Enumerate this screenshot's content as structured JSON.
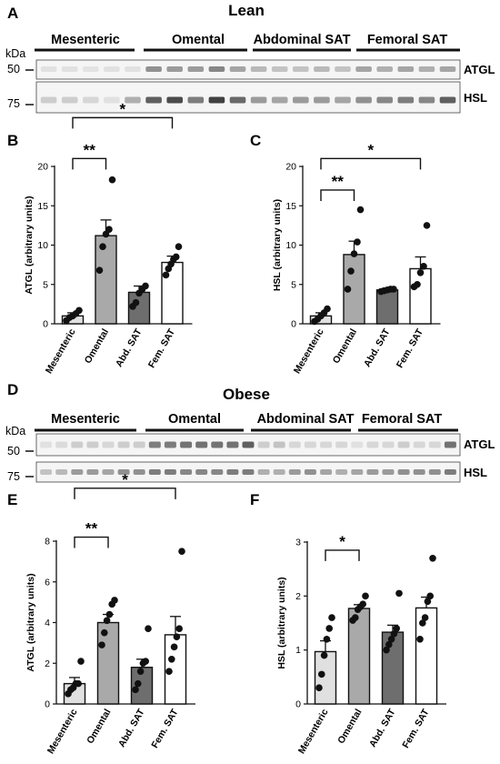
{
  "panel_letters": {
    "A": "A",
    "B": "B",
    "C": "C",
    "D": "D",
    "E": "E",
    "F": "F"
  },
  "sections": {
    "lean_title": "Lean",
    "obese_title": "Obese"
  },
  "blots": {
    "kda_label": "kDa",
    "marker_50": "50",
    "marker_75": "75",
    "atgl_label": "ATGL",
    "hsl_label": "HSL",
    "group_mesenteric": "Mesenteric",
    "group_omental": "Omental",
    "group_abdominal": "Abdominal SAT",
    "group_femoral": "Femoral SAT",
    "lean_atgl_intensity": [
      0.05,
      0.05,
      0.04,
      0.05,
      0.05,
      0.45,
      0.4,
      0.4,
      0.5,
      0.35,
      0.25,
      0.2,
      0.2,
      0.25,
      0.2,
      0.35,
      0.3,
      0.35,
      0.3,
      0.35
    ],
    "lean_hsl_intensity": [
      0.15,
      0.15,
      0.1,
      0.05,
      0.3,
      0.7,
      0.8,
      0.55,
      0.85,
      0.65,
      0.4,
      0.35,
      0.4,
      0.4,
      0.35,
      0.45,
      0.5,
      0.55,
      0.5,
      0.7
    ],
    "obese_atgl_intensity": [
      0.05,
      0.08,
      0.15,
      0.15,
      0.1,
      0.15,
      0.15,
      0.55,
      0.55,
      0.6,
      0.6,
      0.6,
      0.6,
      0.7,
      0.15,
      0.2,
      0.1,
      0.1,
      0.1,
      0.1,
      0.05,
      0.1,
      0.1,
      0.15,
      0.1,
      0.1,
      0.6
    ],
    "obese_hsl_intensity": [
      0.2,
      0.25,
      0.4,
      0.4,
      0.35,
      0.45,
      0.45,
      0.55,
      0.55,
      0.5,
      0.5,
      0.5,
      0.55,
      0.55,
      0.3,
      0.3,
      0.4,
      0.45,
      0.35,
      0.3,
      0.35,
      0.4,
      0.4,
      0.45,
      0.45,
      0.45,
      0.55
    ]
  },
  "chart_data": [
    {
      "panel": "B",
      "type": "bar",
      "ylabel": "ATGL (arbitrary units)",
      "ylim": [
        0,
        20
      ],
      "yticks": [
        0,
        5,
        10,
        15,
        20
      ],
      "categories": [
        "Mesenteric",
        "Omental",
        "Abd. SAT",
        "Fem. SAT"
      ],
      "fills": [
        "#e0e0e0",
        "#a9a9a9",
        "#6e6e6e",
        "#ffffff"
      ],
      "means": [
        1.0,
        11.2,
        4.0,
        7.8
      ],
      "sem": [
        0.4,
        2.0,
        0.8,
        0.8
      ],
      "points": [
        [
          0.4,
          0.8,
          1.0,
          1.3,
          1.7
        ],
        [
          6.8,
          9.8,
          11.4,
          12.0,
          18.3
        ],
        [
          2.2,
          2.7,
          3.9,
          4.4,
          4.8
        ],
        [
          6.2,
          7.0,
          7.6,
          8.2,
          8.5,
          9.8
        ]
      ],
      "significance": [
        {
          "from": 0,
          "to": 1,
          "label": "**",
          "y": 21.0
        },
        {
          "from": 0,
          "to": 3,
          "label": "*",
          "y": 26.2
        }
      ]
    },
    {
      "panel": "C",
      "type": "bar",
      "ylabel": "HSL (arbitrary units)",
      "ylim": [
        0,
        20
      ],
      "yticks": [
        0,
        5,
        10,
        15,
        20
      ],
      "categories": [
        "Mesenteric",
        "Omental",
        "Abd. SAT",
        "Fem. SAT"
      ],
      "fills": [
        "#e0e0e0",
        "#a9a9a9",
        "#6e6e6e",
        "#ffffff"
      ],
      "means": [
        1.0,
        8.8,
        4.3,
        7.0
      ],
      "sem": [
        0.4,
        1.7,
        0.2,
        1.5
      ],
      "points": [
        [
          0.3,
          0.6,
          1.0,
          1.4,
          1.9
        ],
        [
          4.4,
          6.7,
          8.9,
          10.4,
          14.5
        ],
        [
          4.1,
          4.2,
          4.3,
          4.4,
          4.4
        ],
        [
          4.7,
          5.0,
          6.5,
          7.3,
          12.5
        ]
      ],
      "significance": [
        {
          "from": 0,
          "to": 1,
          "label": "**",
          "y": 17.0
        },
        {
          "from": 0,
          "to": 3,
          "label": "*",
          "y": 21.0
        }
      ]
    },
    {
      "panel": "E",
      "type": "bar",
      "ylabel": "ATGL (arbitrary units)",
      "ylim": [
        0,
        8
      ],
      "yticks": [
        0,
        2,
        4,
        6,
        8
      ],
      "categories": [
        "Mesenteric",
        "Omental",
        "Abd. SAT",
        "Fem. SAT"
      ],
      "fills": [
        "#e0e0e0",
        "#a9a9a9",
        "#6e6e6e",
        "#ffffff"
      ],
      "means": [
        1.0,
        4.0,
        1.8,
        3.4
      ],
      "sem": [
        0.3,
        0.4,
        0.4,
        0.9
      ],
      "points": [
        [
          0.5,
          0.7,
          0.8,
          1.0,
          1.0,
          2.1
        ],
        [
          2.9,
          3.5,
          4.1,
          4.4,
          4.9,
          5.1
        ],
        [
          0.7,
          1.0,
          1.6,
          2.0,
          2.1,
          3.7
        ],
        [
          1.6,
          2.2,
          2.8,
          3.3,
          3.7,
          7.5
        ]
      ],
      "significance": [
        {
          "from": 0,
          "to": 1,
          "label": "**",
          "y": 8.2
        },
        {
          "from": 0,
          "to": 3,
          "label": "*",
          "y": 10.6
        }
      ]
    },
    {
      "panel": "F",
      "type": "bar",
      "ylabel": "HSL (arbitrary units)",
      "ylim": [
        0,
        3
      ],
      "yticks": [
        0,
        1,
        2,
        3
      ],
      "categories": [
        "Mesenteric",
        "Omental",
        "Abd. SAT",
        "Fem. SAT"
      ],
      "fills": [
        "#e0e0e0",
        "#a9a9a9",
        "#6e6e6e",
        "#ffffff"
      ],
      "means": [
        0.97,
        1.77,
        1.33,
        1.78
      ],
      "sem": [
        0.2,
        0.07,
        0.13,
        0.2
      ],
      "points": [
        [
          0.3,
          0.55,
          0.9,
          1.2,
          1.4,
          1.6
        ],
        [
          1.55,
          1.6,
          1.75,
          1.8,
          1.85,
          2.0
        ],
        [
          1.0,
          1.1,
          1.2,
          1.3,
          1.4,
          2.05
        ],
        [
          1.2,
          1.5,
          1.6,
          1.9,
          2.0,
          2.7
        ]
      ],
      "significance": [
        {
          "from": 0,
          "to": 1,
          "label": "*",
          "y": 2.85
        }
      ]
    }
  ]
}
